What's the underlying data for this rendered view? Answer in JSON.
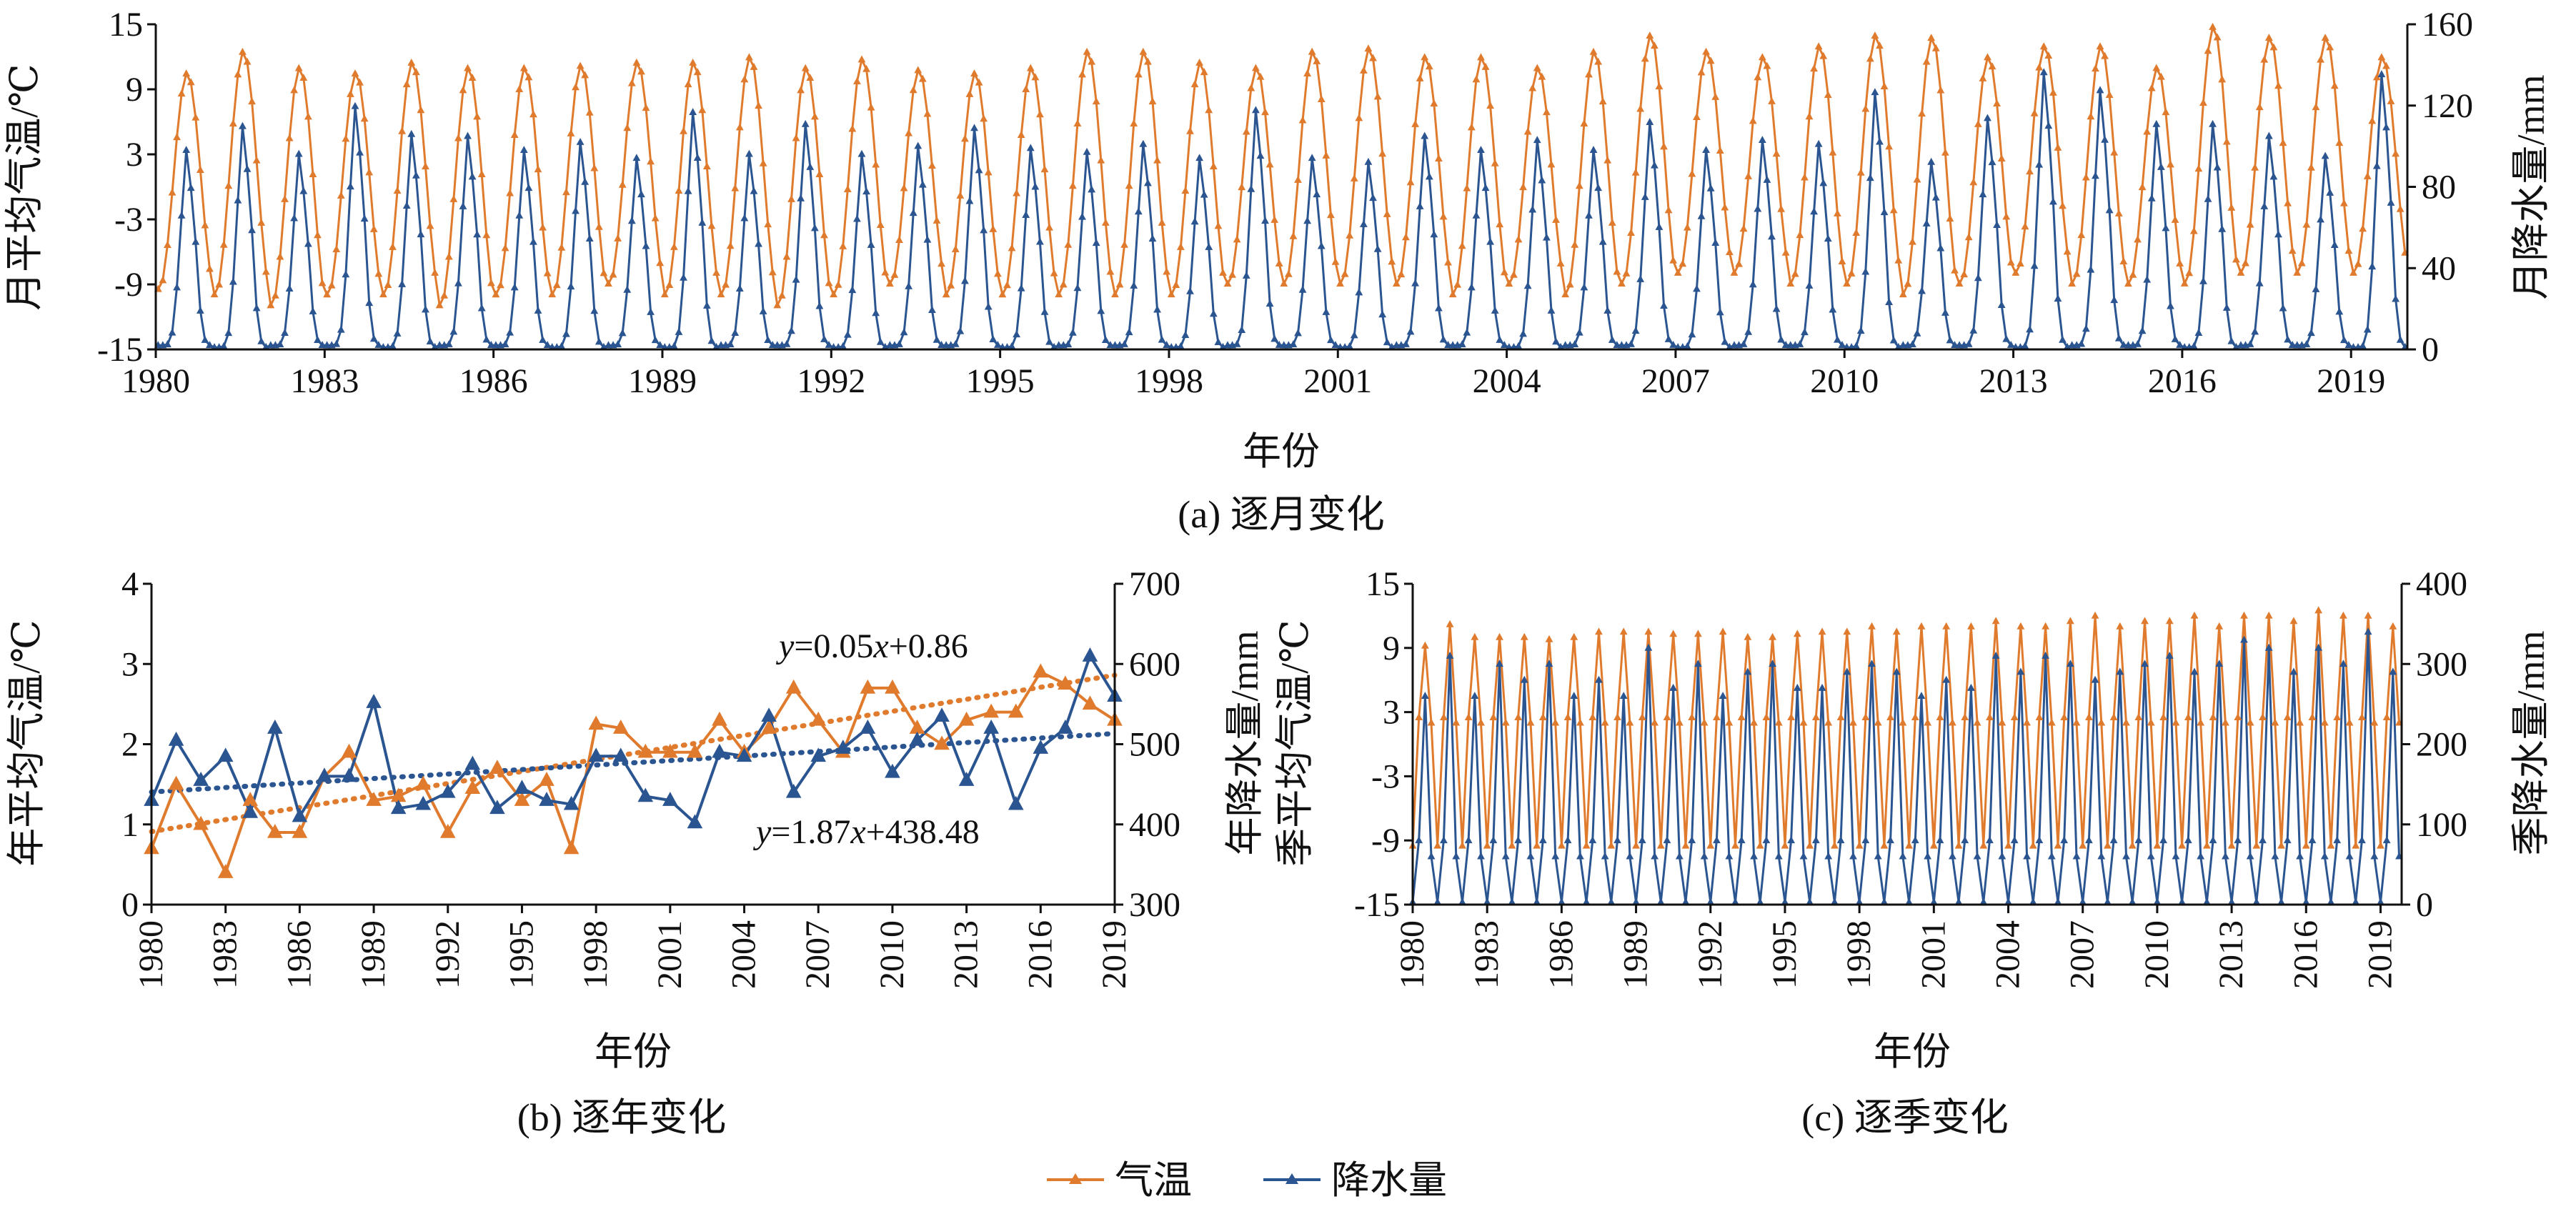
{
  "colors": {
    "temp": "#e07b2e",
    "precip": "#2a5591",
    "axis": "#111111"
  },
  "legend": {
    "temp": "气温",
    "precip": "降水量"
  },
  "panels": {
    "a": {
      "caption": "(a) 逐月变化",
      "xlabel": "年份",
      "ylabel_left": "月平均气温/℃",
      "ylabel_right": "月降水量/mm"
    },
    "b": {
      "caption": "(b) 逐年变化",
      "xlabel": "年份",
      "ylabel_left": "年平均气温/℃",
      "ylabel_right": "年降水量/mm",
      "eq_temp": {
        "y": "y",
        "rest1": "=0.05",
        "x": "x",
        "rest2": "+0.86"
      },
      "eq_precip": {
        "y": "y",
        "rest1": "=1.87",
        "x": "x",
        "rest2": "+438.48"
      }
    },
    "c": {
      "caption": "(c) 逐季变化",
      "xlabel": "年份",
      "ylabel_left": "季平均气温/℃",
      "ylabel_right": "季降水量/mm"
    }
  },
  "chart_data": [
    {
      "id": "monthly",
      "type": "line",
      "title": "(a) 逐月变化",
      "xlabel": "年份",
      "ylabel_left": "月平均气温/℃",
      "ylabel_right": "月降水量/mm",
      "x_range": [
        1980,
        2020
      ],
      "x_ticks": [
        "1980",
        "1983",
        "1986",
        "1989",
        "1992",
        "1995",
        "1998",
        "2001",
        "2004",
        "2007",
        "2010",
        "2013",
        "2016",
        "2019"
      ],
      "ylim_left": [
        -15,
        15
      ],
      "yticks_left": [
        "-15",
        "-9",
        "-3",
        "3",
        "9",
        "15"
      ],
      "ylim_right": [
        0,
        160
      ],
      "yticks_right": [
        "0",
        "40",
        "80",
        "120",
        "160"
      ],
      "series": [
        {
          "name": "气温",
          "axis": "left",
          "summer_peaks": [
            10.5,
            12.5,
            11.0,
            10.5,
            11.5,
            11.0,
            11.0,
            11.2,
            11.5,
            11.5,
            12.0,
            11.0,
            11.8,
            10.8,
            10.5,
            11.0,
            12.5,
            12.5,
            11.5,
            11.0,
            12.5,
            12.8,
            12.0,
            12.0,
            11.0,
            12.5,
            14.0,
            12.5,
            12.0,
            13.0,
            14.0,
            13.8,
            12.0,
            13.0,
            13.0,
            11.0,
            14.8,
            13.8,
            13.8,
            12.0
          ],
          "winter_troughs": [
            -9.5,
            -10,
            -11,
            -10,
            -10,
            -11,
            -10,
            -10,
            -9,
            -10,
            -10,
            -11,
            -10,
            -9,
            -10,
            -10,
            -10,
            -10,
            -10,
            -9,
            -9,
            -9,
            -9,
            -10,
            -9,
            -10,
            -9,
            -8,
            -8,
            -9,
            -9,
            -10,
            -9,
            -8,
            -9,
            -9,
            -9,
            -8,
            -8,
            -8
          ]
        },
        {
          "name": "降水量",
          "axis": "right",
          "summer_peaks": [
            100,
            112,
            98,
            122,
            108,
            107,
            100,
            104,
            96,
            119,
            98,
            113,
            98,
            102,
            111,
            101,
            99,
            103,
            96,
            120,
            96,
            94,
            107,
            100,
            105,
            100,
            114,
            100,
            105,
            103,
            129,
            94,
            116,
            139,
            130,
            113,
            113,
            107,
            97,
            138
          ],
          "winter_troughs": [
            2,
            1,
            2,
            2,
            1,
            2,
            2,
            1,
            2,
            1,
            2,
            2,
            1,
            2,
            2,
            1,
            2,
            2,
            1,
            2,
            2,
            1,
            2,
            2,
            1,
            2,
            2,
            1,
            2,
            2,
            1,
            2,
            2,
            1,
            2,
            2,
            1,
            2,
            2,
            1
          ]
        }
      ]
    },
    {
      "id": "annual",
      "type": "line",
      "title": "(b) 逐年变化",
      "xlabel": "年份",
      "ylabel_left": "年平均气温/℃",
      "ylabel_right": "年降水量/mm",
      "x": [
        1980,
        1981,
        1982,
        1983,
        1984,
        1985,
        1986,
        1987,
        1988,
        1989,
        1990,
        1991,
        1992,
        1993,
        1994,
        1995,
        1996,
        1997,
        1998,
        1999,
        2000,
        2001,
        2002,
        2003,
        2004,
        2005,
        2006,
        2007,
        2008,
        2009,
        2010,
        2011,
        2012,
        2013,
        2014,
        2015,
        2016,
        2017,
        2018,
        2019
      ],
      "x_ticks": [
        "1980",
        "1983",
        "1986",
        "1989",
        "1992",
        "1995",
        "1998",
        "2001",
        "2004",
        "2007",
        "2010",
        "2013",
        "2016",
        "2019"
      ],
      "ylim_left": [
        0,
        4
      ],
      "yticks_left": [
        "0",
        "1",
        "2",
        "3",
        "4"
      ],
      "ylim_right": [
        300,
        700
      ],
      "yticks_right": [
        "300",
        "400",
        "500",
        "600",
        "700"
      ],
      "series": [
        {
          "name": "气温",
          "axis": "left",
          "values": [
            0.7,
            1.5,
            1.0,
            0.4,
            1.3,
            0.9,
            0.9,
            1.6,
            1.9,
            1.3,
            1.35,
            1.5,
            0.9,
            1.45,
            1.7,
            1.3,
            1.55,
            0.7,
            2.25,
            2.2,
            1.9,
            1.9,
            1.9,
            2.3,
            1.9,
            2.2,
            2.7,
            2.3,
            1.9,
            2.7,
            2.7,
            2.2,
            2.0,
            2.3,
            2.4,
            2.4,
            2.9,
            2.75,
            2.5,
            2.3
          ],
          "trend": {
            "slope": 0.05,
            "intercept": 0.86
          }
        },
        {
          "name": "降水量",
          "axis": "right",
          "values": [
            430,
            505,
            455,
            485,
            415,
            520,
            410,
            460,
            460,
            552,
            420,
            425,
            440,
            475,
            420,
            445,
            430,
            425,
            485,
            485,
            435,
            430,
            402,
            490,
            485,
            535,
            440,
            485,
            495,
            520,
            465,
            505,
            535,
            455,
            520,
            425,
            495,
            520,
            610,
            560
          ],
          "trend": {
            "slope": 1.87,
            "intercept": 438.48
          }
        }
      ]
    },
    {
      "id": "seasonal",
      "type": "line",
      "title": "(c) 逐季变化",
      "xlabel": "年份",
      "ylabel_left": "季平均气温/℃",
      "ylabel_right": "季降水量/mm",
      "x_range": [
        1980,
        2020
      ],
      "x_ticks": [
        "1980",
        "1983",
        "1986",
        "1989",
        "1992",
        "1995",
        "1998",
        "2001",
        "2004",
        "2007",
        "2010",
        "2013",
        "2016",
        "2019"
      ],
      "ylim_left": [
        -15,
        15
      ],
      "yticks_left": [
        "-15",
        "-9",
        "-3",
        "3",
        "9",
        "15"
      ],
      "ylim_right": [
        0,
        400
      ],
      "yticks_right": [
        "0",
        "100",
        "200",
        "300",
        "400"
      ],
      "series": [
        {
          "name": "气温",
          "axis": "left",
          "seasonal_cycle": [
            -9.5,
            2.5,
            10.5,
            2.0
          ],
          "summer_peaks": [
            9.2,
            11.2,
            10.0,
            10.0,
            10.0,
            9.8,
            10.0,
            10.5,
            10.5,
            10.5,
            10.3,
            10.3,
            10.5,
            10.0,
            10.0,
            10.3,
            10.5,
            10.5,
            11.0,
            10.5,
            11.0,
            11.0,
            11.0,
            11.5,
            11.0,
            11.0,
            11.5,
            12.0,
            11.0,
            11.5,
            11.5,
            12.0,
            11.0,
            12.0,
            12.0,
            11.5,
            12.5,
            12.0,
            12.0,
            11.0
          ]
        },
        {
          "name": "降水量",
          "axis": "right",
          "seasonal_cycle": [
            3,
            80,
            280,
            60
          ],
          "summer_peaks": [
            260,
            310,
            260,
            300,
            280,
            300,
            260,
            280,
            260,
            320,
            270,
            300,
            260,
            290,
            300,
            270,
            270,
            290,
            300,
            290,
            260,
            280,
            270,
            310,
            290,
            310,
            300,
            280,
            290,
            300,
            310,
            290,
            300,
            330,
            320,
            290,
            320,
            300,
            340,
            290
          ]
        }
      ]
    }
  ]
}
